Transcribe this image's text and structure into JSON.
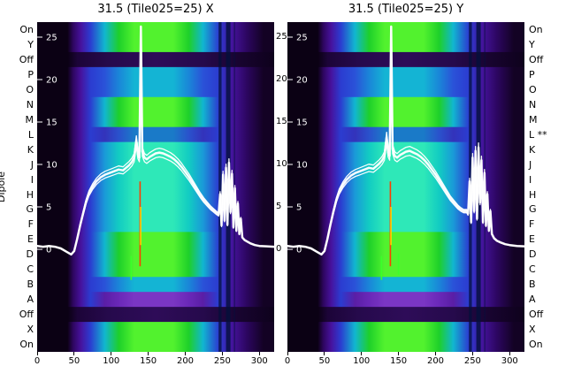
{
  "figure": {
    "ylabel": "Dipole"
  },
  "chart_data": {
    "type": "heatmap",
    "overlay": "line",
    "x_range": [
      0,
      320
    ],
    "y_range": [
      0,
      28
    ],
    "x_ticks": [
      0,
      50,
      100,
      150,
      200,
      250,
      300
    ],
    "y_ticks": [
      25,
      20,
      15,
      10,
      5,
      0
    ],
    "row_labels_left": [
      "On",
      "Y",
      "Off",
      "P",
      "O",
      "N",
      "M",
      "L",
      "K",
      "J",
      "I",
      "H",
      "G",
      "F",
      "E",
      "D",
      "C",
      "B",
      "A",
      "Off",
      "X",
      "On"
    ],
    "row_labels_right": [
      "On",
      "Y",
      "Off",
      "P",
      "O",
      "N",
      "M",
      "L **",
      "K",
      "J",
      "I",
      "H",
      "G",
      "F",
      "E",
      "D",
      "C",
      "B",
      "A",
      "Off",
      "X",
      "On"
    ],
    "row_palette": [
      "green",
      "green",
      "dark",
      "blue",
      "blue",
      "green",
      "green",
      "indigo",
      "cyan",
      "cyan",
      "cyan",
      "cyan",
      "cyan",
      "cyan",
      "green",
      "green",
      "green",
      "blue",
      "purple",
      "dark",
      "green",
      "green"
    ],
    "stripes": [
      {
        "x0": 245,
        "x1": 249,
        "opacity": 0.75
      },
      {
        "x0": 255,
        "x1": 261,
        "opacity": 0.8
      },
      {
        "x0": 265.5,
        "x1": 267.5,
        "opacity": 0.45
      }
    ],
    "colors": {
      "curve": "#ffffff",
      "stripe": "#04103c",
      "background_dark": "#0b0114",
      "tick_text_inner": "#ffffff",
      "tick_text_outer": "#000000"
    },
    "panels": [
      {
        "title": "31.5 (Tile025=25) X",
        "marks": [
          {
            "x": 139,
            "y0": 8,
            "y1": -2,
            "color": "#ff3c00"
          },
          {
            "x": 139.8,
            "y0": 5,
            "y1": 0.5,
            "color": "#ffd400"
          },
          {
            "x": 127,
            "y0": -0.8,
            "y1": -3.6,
            "color": "#3cff2a"
          }
        ],
        "curve": [
          [
            0,
            0.4
          ],
          [
            8,
            0.3
          ],
          [
            16,
            0.4
          ],
          [
            24,
            0.3
          ],
          [
            32,
            0.1
          ],
          [
            40,
            -0.3
          ],
          [
            46,
            -0.6
          ],
          [
            50,
            -0.2
          ],
          [
            54,
            1.2
          ],
          [
            58,
            2.8
          ],
          [
            62,
            4.2
          ],
          [
            66,
            5.6
          ],
          [
            70,
            6.6
          ],
          [
            75,
            7.4
          ],
          [
            80,
            8.0
          ],
          [
            86,
            8.5
          ],
          [
            92,
            8.8
          ],
          [
            98,
            9.0
          ],
          [
            104,
            9.2
          ],
          [
            110,
            9.4
          ],
          [
            116,
            9.3
          ],
          [
            120,
            9.6
          ],
          [
            124,
            9.9
          ],
          [
            128,
            10.3
          ],
          [
            131,
            10.8
          ],
          [
            134,
            12.8
          ],
          [
            136,
            11.2
          ],
          [
            138,
            10.8
          ],
          [
            140,
            26.5
          ],
          [
            142,
            11.5
          ],
          [
            145,
            10.8
          ],
          [
            148,
            10.6
          ],
          [
            152,
            10.9
          ],
          [
            156,
            11.1
          ],
          [
            160,
            11.3
          ],
          [
            165,
            11.4
          ],
          [
            170,
            11.3
          ],
          [
            175,
            11.1
          ],
          [
            180,
            10.9
          ],
          [
            185,
            10.6
          ],
          [
            190,
            10.2
          ],
          [
            195,
            9.7
          ],
          [
            200,
            9.1
          ],
          [
            205,
            8.5
          ],
          [
            210,
            7.8
          ],
          [
            215,
            7.1
          ],
          [
            220,
            6.4
          ],
          [
            225,
            5.8
          ],
          [
            230,
            5.3
          ],
          [
            234,
            4.9
          ],
          [
            238,
            4.6
          ],
          [
            242,
            4.3
          ],
          [
            245,
            4.1
          ],
          [
            247,
            6.5
          ],
          [
            249,
            2.8
          ],
          [
            251,
            8.8
          ],
          [
            253,
            3.4
          ],
          [
            255,
            9.6
          ],
          [
            257,
            2.9
          ],
          [
            259,
            10.2
          ],
          [
            261,
            4.4
          ],
          [
            263,
            8.9
          ],
          [
            265,
            2.6
          ],
          [
            267,
            7.2
          ],
          [
            269,
            2.2
          ],
          [
            271,
            5.4
          ],
          [
            273,
            1.8
          ],
          [
            275,
            3.6
          ],
          [
            277,
            1.4
          ],
          [
            280,
            1.1
          ],
          [
            284,
            0.9
          ],
          [
            288,
            0.7
          ],
          [
            294,
            0.5
          ],
          [
            300,
            0.4
          ],
          [
            310,
            0.35
          ],
          [
            320,
            0.3
          ]
        ]
      },
      {
        "title": "31.5 (Tile025=25) Y",
        "marks": [
          {
            "x": 139,
            "y0": 8,
            "y1": -2,
            "color": "#ff3c00"
          },
          {
            "x": 139.8,
            "y0": 5,
            "y1": 0.5,
            "color": "#ffd400"
          },
          {
            "x": 127,
            "y0": -0.8,
            "y1": -3.6,
            "color": "#3cff2a"
          },
          {
            "x": 150,
            "y0": -0.5,
            "y1": -3.0,
            "color": "#3cff2a"
          }
        ],
        "curve": [
          [
            0,
            0.4
          ],
          [
            8,
            0.3
          ],
          [
            16,
            0.4
          ],
          [
            24,
            0.3
          ],
          [
            32,
            0.1
          ],
          [
            40,
            -0.3
          ],
          [
            46,
            -0.6
          ],
          [
            50,
            -0.2
          ],
          [
            54,
            1.2
          ],
          [
            58,
            2.9
          ],
          [
            62,
            4.4
          ],
          [
            66,
            5.8
          ],
          [
            70,
            6.8
          ],
          [
            75,
            7.6
          ],
          [
            80,
            8.2
          ],
          [
            86,
            8.7
          ],
          [
            92,
            9.0
          ],
          [
            98,
            9.2
          ],
          [
            104,
            9.4
          ],
          [
            110,
            9.6
          ],
          [
            116,
            9.5
          ],
          [
            120,
            9.8
          ],
          [
            124,
            10.1
          ],
          [
            128,
            10.5
          ],
          [
            131,
            11.0
          ],
          [
            134,
            13.2
          ],
          [
            136,
            11.4
          ],
          [
            138,
            11.0
          ],
          [
            140,
            26.5
          ],
          [
            142,
            11.8
          ],
          [
            145,
            11.0
          ],
          [
            148,
            10.8
          ],
          [
            152,
            11.1
          ],
          [
            156,
            11.3
          ],
          [
            160,
            11.5
          ],
          [
            165,
            11.6
          ],
          [
            170,
            11.4
          ],
          [
            175,
            11.2
          ],
          [
            180,
            10.9
          ],
          [
            185,
            10.5
          ],
          [
            190,
            10.0
          ],
          [
            195,
            9.4
          ],
          [
            200,
            8.8
          ],
          [
            205,
            8.1
          ],
          [
            210,
            7.4
          ],
          [
            215,
            6.7
          ],
          [
            220,
            6.0
          ],
          [
            225,
            5.5
          ],
          [
            230,
            5.0
          ],
          [
            234,
            4.7
          ],
          [
            238,
            4.5
          ],
          [
            242,
            4.5
          ],
          [
            244,
            4.2
          ],
          [
            246,
            8.0
          ],
          [
            248,
            3.2
          ],
          [
            250,
            10.8
          ],
          [
            252,
            4.5
          ],
          [
            254,
            11.6
          ],
          [
            256,
            3.6
          ],
          [
            258,
            12.0
          ],
          [
            260,
            5.5
          ],
          [
            262,
            10.5
          ],
          [
            264,
            3.2
          ],
          [
            266,
            9.0
          ],
          [
            268,
            2.8
          ],
          [
            270,
            6.5
          ],
          [
            272,
            2.2
          ],
          [
            274,
            4.5
          ],
          [
            276,
            1.8
          ],
          [
            279,
            1.3
          ],
          [
            283,
            1.0
          ],
          [
            288,
            0.8
          ],
          [
            294,
            0.6
          ],
          [
            300,
            0.5
          ],
          [
            310,
            0.4
          ],
          [
            320,
            0.35
          ]
        ]
      }
    ]
  }
}
